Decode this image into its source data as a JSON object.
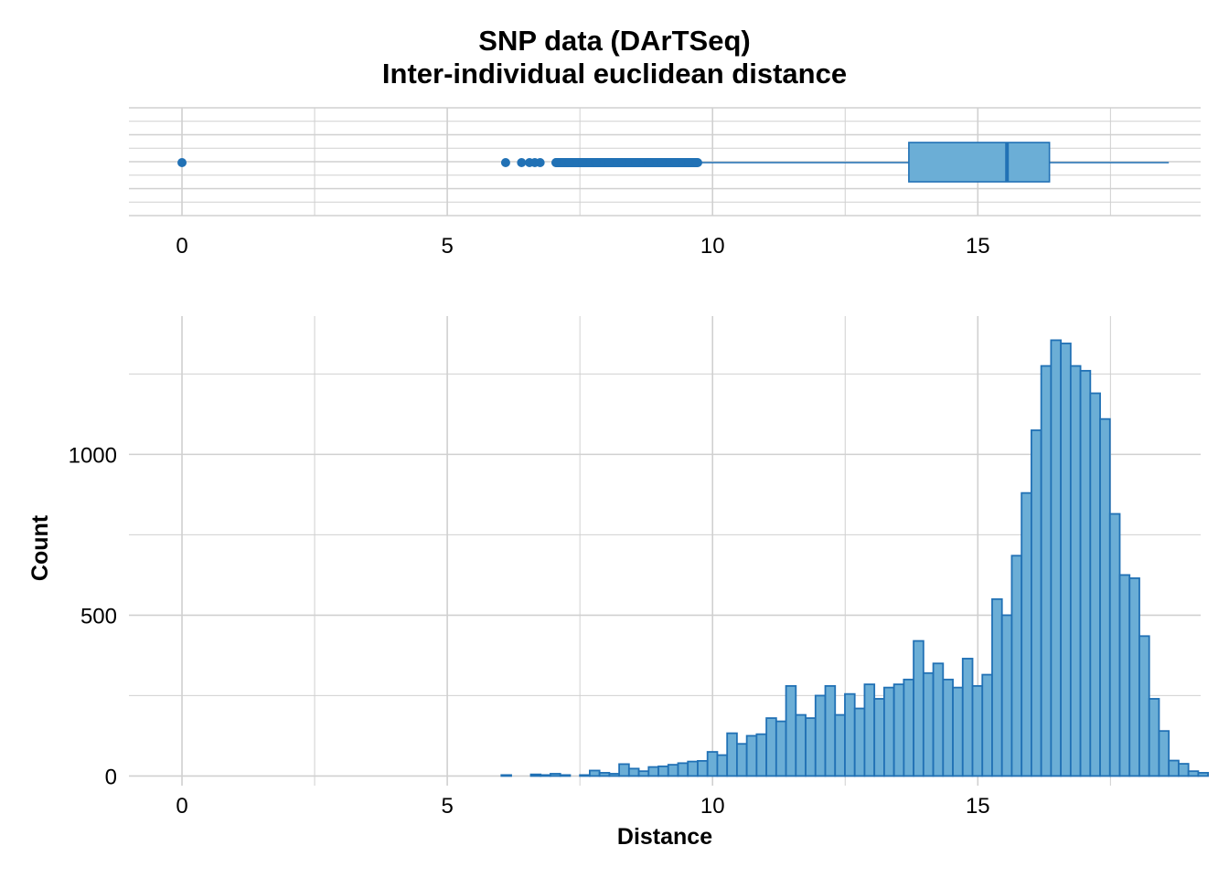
{
  "title": "SNP data (DArTSeq)",
  "subtitle": "Inter-individual euclidean distance",
  "colors": {
    "fill": "#6baed6",
    "stroke": "#2171b5",
    "grid": "#d0d0d0"
  },
  "chart_data": [
    {
      "type": "boxplot",
      "orientation": "horizontal",
      "xlim": [
        -1,
        19.2
      ],
      "x_ticks": [
        0,
        5,
        10,
        15
      ],
      "x_tick_labels": [
        "0",
        "5",
        "10",
        "15"
      ],
      "box": {
        "q1": 13.7,
        "median": 15.55,
        "q3": 16.35,
        "whisker_low": 9.75,
        "whisker_high": 18.6
      },
      "outliers": [
        0,
        6.1,
        6.4,
        6.55,
        6.65,
        6.75,
        7.05,
        7.3,
        7.55,
        7.8,
        8.05,
        8.3,
        8.55,
        8.8,
        9.05,
        9.3,
        9.55,
        9.7
      ],
      "grid": true
    },
    {
      "type": "histogram",
      "xlabel": "Distance",
      "ylabel": "Count",
      "xlim": [
        -1,
        19.2
      ],
      "ylim": [
        -30,
        1430
      ],
      "x_ticks": [
        0,
        5,
        10,
        15
      ],
      "x_tick_labels": [
        "0",
        "5",
        "10",
        "15"
      ],
      "y_ticks": [
        0,
        500,
        1000
      ],
      "y_tick_labels": [
        "0",
        "500",
        "1000"
      ],
      "bin_start": 0.1,
      "bin_width": 0.185,
      "counts": [
        0,
        0,
        0,
        0,
        0,
        0,
        0,
        0,
        0,
        0,
        0,
        0,
        0,
        0,
        0,
        0,
        0,
        0,
        0,
        0,
        0,
        0,
        0,
        0,
        0,
        0,
        0,
        0,
        0,
        0,
        0,
        0,
        3,
        0,
        0,
        5,
        3,
        7,
        3,
        0,
        3,
        17,
        10,
        7,
        37,
        23,
        15,
        28,
        30,
        35,
        40,
        45,
        47,
        75,
        65,
        133,
        100,
        125,
        130,
        180,
        170,
        280,
        190,
        180,
        250,
        280,
        190,
        255,
        210,
        285,
        240,
        275,
        285,
        300,
        420,
        320,
        350,
        300,
        275,
        365,
        280,
        315,
        550,
        500,
        685,
        880,
        1075,
        1275,
        1355,
        1345,
        1275,
        1260,
        1190,
        1110,
        815,
        625,
        615,
        435,
        240,
        140,
        48,
        38,
        15,
        10
      ],
      "grid": true
    }
  ]
}
